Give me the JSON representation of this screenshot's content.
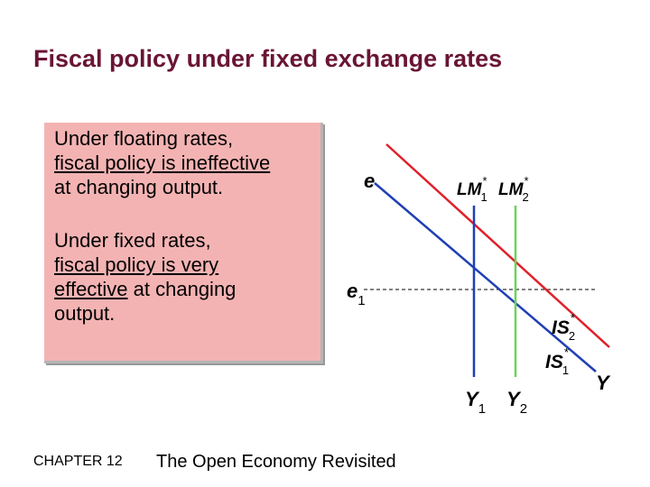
{
  "slide": {
    "title": "Fiscal policy under fixed exchange rates"
  },
  "callout": {
    "p1_line1": "Under floating rates,",
    "p1_line2": "fiscal policy is ineffective",
    "p1_line3": "at changing output.",
    "p2_line1": "Under fixed rates,",
    "p2_line2": "fiscal policy is very",
    "p2_line3_u": "effective",
    "p2_line3_rest": " at changing",
    "p2_line4": "output."
  },
  "footer": {
    "chapter": "CHAPTER 12",
    "book": "The Open Economy Revisited"
  },
  "diagram": {
    "y_axis_label": "e",
    "x_axis_label": "Y",
    "e1_label": "e",
    "e1_sub": "1",
    "y1_label": "Y",
    "y1_sub": "1",
    "y2_label": "Y",
    "y2_sub": "2",
    "lm1_label": "LM",
    "lm1_sub": "1",
    "lm2_label": "LM",
    "lm2_sub": "2",
    "is1_label": "IS",
    "is1_sub": "1",
    "is2_label": "IS",
    "is2_sub": "2",
    "star": "*",
    "colors": {
      "lm1": "#1f3fb4",
      "lm2": "#6ad35a",
      "is1": "#1f3fb4",
      "is2": "#e0202a",
      "title": "#6a1535",
      "callout_bg": "#f4b3b3"
    }
  }
}
